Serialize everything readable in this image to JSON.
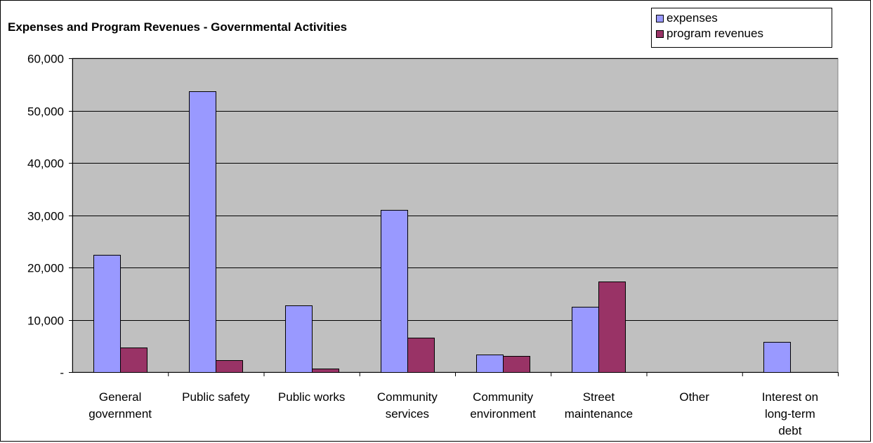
{
  "chart_data": {
    "type": "bar",
    "title": "Expenses and Program Revenues - Governmental Activities",
    "categories": [
      [
        "General",
        "government"
      ],
      [
        "Public safety"
      ],
      [
        "Public works"
      ],
      [
        "Community",
        "services"
      ],
      [
        "Community",
        "environment"
      ],
      [
        "Street",
        "maintenance"
      ],
      [
        "Other"
      ],
      [
        "Interest on",
        "long-term",
        "debt"
      ]
    ],
    "series": [
      {
        "name": "expenses",
        "color": "#9999ff",
        "values": [
          22400,
          53700,
          12700,
          31000,
          3400,
          12500,
          0,
          5800
        ]
      },
      {
        "name": "program revenues",
        "color": "#993366",
        "values": [
          4700,
          2300,
          700,
          6600,
          3100,
          17300,
          0,
          0
        ]
      }
    ],
    "ylim": [
      0,
      60000
    ],
    "yticks": [
      0,
      10000,
      20000,
      30000,
      40000,
      50000,
      60000
    ],
    "ytick_labels": [
      "-",
      "10,000",
      "20,000",
      "30,000",
      "40,000",
      "50,000",
      "60,000"
    ],
    "grid": true,
    "plot_background": "#c0c0c0",
    "legend_position": "top-right",
    "xlabel": "",
    "ylabel": ""
  }
}
